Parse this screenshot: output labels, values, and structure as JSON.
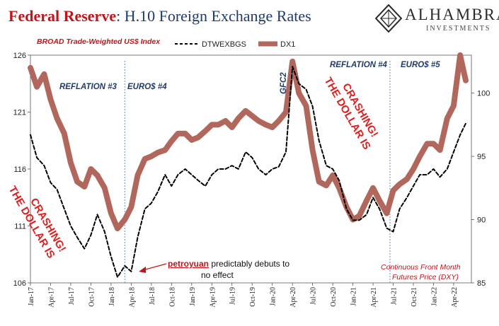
{
  "title": {
    "part1": "Federal Reserve",
    "part2": ": H.10 Foreign Exchange Rates"
  },
  "logo": {
    "brand": "ALHAMBRA",
    "sub": "INVESTMENTS"
  },
  "chart_data": {
    "type": "line",
    "subtitle": "BROAD Trade-Weighted US$ Index",
    "x_tick_labels": [
      "Jan-17",
      "Apr-17",
      "Jul-17",
      "Oct-17",
      "Jan-18",
      "Apr-18",
      "Jul-18",
      "Oct-18",
      "Jan-19",
      "Apr-19",
      "Jul-19",
      "Oct-19",
      "Jan-20",
      "Apr-20",
      "Jul-20",
      "Oct-20",
      "Jan-21",
      "Apr-21",
      "Jul-21",
      "Oct-21",
      "Jan-22",
      "Apr-22"
    ],
    "y_left": {
      "ticks": [
        106,
        111,
        116,
        121,
        126
      ],
      "ylim": [
        106,
        126
      ]
    },
    "y_right": {
      "ticks": [
        85,
        90,
        95,
        100
      ],
      "ylim": [
        85,
        103
      ]
    },
    "grid": false,
    "legend_position": "top-center",
    "series": [
      {
        "name": "DTWEXBGS",
        "axis": "left",
        "style": "dashed",
        "color": "#000000",
        "x": [
          2017.0,
          2017.08,
          2017.17,
          2017.25,
          2017.33,
          2017.42,
          2017.5,
          2017.58,
          2017.67,
          2017.75,
          2017.83,
          2017.92,
          2018.0,
          2018.08,
          2018.17,
          2018.25,
          2018.33,
          2018.42,
          2018.5,
          2018.58,
          2018.67,
          2018.75,
          2018.83,
          2018.92,
          2019.0,
          2019.08,
          2019.17,
          2019.25,
          2019.33,
          2019.42,
          2019.5,
          2019.58,
          2019.67,
          2019.75,
          2019.83,
          2019.92,
          2020.0,
          2020.08,
          2020.17,
          2020.25,
          2020.33,
          2020.42,
          2020.5,
          2020.58,
          2020.67,
          2020.75,
          2020.83,
          2020.92,
          2021.0,
          2021.08,
          2021.17,
          2021.25,
          2021.33,
          2021.42,
          2021.5,
          2021.58,
          2021.67,
          2021.75,
          2021.83,
          2021.92,
          2022.0,
          2022.08,
          2022.17,
          2022.25,
          2022.33,
          2022.4
        ],
        "values": [
          119.0,
          117.0,
          116.3,
          114.8,
          114.2,
          112.5,
          111.0,
          110.0,
          109.0,
          110.2,
          112.0,
          110.5,
          108.3,
          106.5,
          107.5,
          107.0,
          110.0,
          112.5,
          113.0,
          114.0,
          115.5,
          114.5,
          115.5,
          116.0,
          115.5,
          115.0,
          114.5,
          115.5,
          116.0,
          116.0,
          116.3,
          116.0,
          117.5,
          117.0,
          116.0,
          115.5,
          116.0,
          116.2,
          117.5,
          125.0,
          123.5,
          123.0,
          121.5,
          118.5,
          116.3,
          116.0,
          115.0,
          112.5,
          111.5,
          111.5,
          112.0,
          113.5,
          112.5,
          110.8,
          110.5,
          112.5,
          113.5,
          114.5,
          115.5,
          115.5,
          116.0,
          115.3,
          116.0,
          117.5,
          119.0,
          120.0
        ]
      },
      {
        "name": "DX1",
        "axis": "right",
        "style": "solid",
        "color": "#b2675d",
        "x": [
          2017.0,
          2017.08,
          2017.17,
          2017.25,
          2017.33,
          2017.42,
          2017.5,
          2017.58,
          2017.67,
          2017.75,
          2017.83,
          2017.92,
          2018.0,
          2018.08,
          2018.17,
          2018.25,
          2018.33,
          2018.42,
          2018.5,
          2018.58,
          2018.67,
          2018.75,
          2018.83,
          2018.92,
          2019.0,
          2019.08,
          2019.17,
          2019.25,
          2019.33,
          2019.42,
          2019.5,
          2019.58,
          2019.67,
          2019.75,
          2019.83,
          2019.92,
          2020.0,
          2020.08,
          2020.17,
          2020.25,
          2020.33,
          2020.42,
          2020.5,
          2020.58,
          2020.67,
          2020.75,
          2020.83,
          2020.92,
          2021.0,
          2021.08,
          2021.17,
          2021.25,
          2021.33,
          2021.42,
          2021.5,
          2021.58,
          2021.67,
          2021.75,
          2021.83,
          2021.92,
          2022.0,
          2022.08,
          2022.17,
          2022.25,
          2022.33,
          2022.4
        ],
        "values": [
          102.0,
          100.5,
          101.5,
          99.5,
          98.0,
          96.8,
          94.5,
          93.0,
          92.6,
          94.0,
          93.5,
          92.5,
          90.5,
          89.3,
          90.0,
          91.0,
          93.5,
          94.8,
          95.0,
          95.3,
          95.5,
          96.2,
          96.8,
          96.8,
          96.3,
          96.5,
          97.0,
          97.5,
          97.5,
          97.8,
          97.3,
          98.0,
          98.6,
          98.2,
          97.8,
          97.5,
          97.3,
          97.8,
          98.5,
          102.5,
          100.0,
          99.0,
          95.5,
          93.0,
          92.7,
          93.5,
          92.5,
          91.0,
          90.0,
          90.3,
          91.5,
          92.5,
          91.5,
          90.5,
          92.3,
          92.8,
          93.2,
          94.0,
          95.0,
          96.0,
          96.0,
          95.5,
          98.0,
          99.0,
          103.0,
          101.0
        ]
      }
    ],
    "vertical_lines": [
      2018.17,
      2021.46
    ],
    "annotations": [
      {
        "id": "reflation3",
        "text": "REFLATION #3",
        "color": "#1f3a6b"
      },
      {
        "id": "euros4",
        "text": "EURO$ #4",
        "color": "#1f3a6b"
      },
      {
        "id": "gfc2",
        "text": "GFC2",
        "color": "#1f3a6b"
      },
      {
        "id": "reflation4",
        "text": "REFLATION #4",
        "color": "#1f3a6b"
      },
      {
        "id": "euros5",
        "text": "EURO$ #5",
        "color": "#1f3a6b"
      },
      {
        "id": "dollar_crashing_1",
        "lines": [
          "THE DOLLAR IS",
          "CRASHING!"
        ],
        "color": "#e01e1e"
      },
      {
        "id": "dollar_crashing_2",
        "lines": [
          "THE DOLLAR IS",
          "CRASHING!"
        ],
        "color": "#e01e1e"
      },
      {
        "id": "petroyuan",
        "highlight": "petroyuan",
        "rest": " predictably debuts to",
        "line2": "no effect",
        "color": "#c0141b"
      },
      {
        "id": "futures_note",
        "lines": [
          "Continuous  Front Month",
          "Futures Price (DXY)"
        ],
        "color": "#c0141b"
      }
    ]
  }
}
